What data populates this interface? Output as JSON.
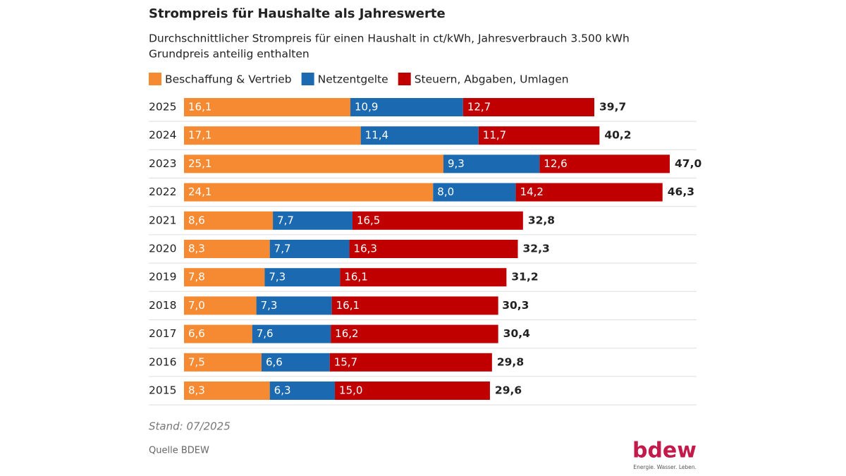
{
  "chart_data": {
    "type": "stacked-bar-horizontal",
    "title": "Strompreis für Haushalte als Jahreswerte",
    "subtitle": [
      "Durchschnittlicher Strompreis für einen Haushalt in ct/kWh, Jahresverbrauch 3.500 kWh",
      "Grundpreis anteilig enthalten"
    ],
    "categories": [
      "2025",
      "2024",
      "2023",
      "2022",
      "2021",
      "2020",
      "2019",
      "2018",
      "2017",
      "2016",
      "2015"
    ],
    "series": [
      {
        "name": "Beschaffung & Vertrieb",
        "color": "#f58a32",
        "values": [
          16.1,
          17.1,
          25.1,
          24.1,
          8.6,
          8.3,
          7.8,
          7.0,
          6.6,
          7.5,
          8.3
        ],
        "value_labels": [
          "16,1",
          "17,1",
          "25,1",
          "24,1",
          "8,6",
          "8,3",
          "7,8",
          "7,0",
          "6,6",
          "7,5",
          "8,3"
        ]
      },
      {
        "name": "Netzentgelte",
        "color": "#1b69b0",
        "values": [
          10.9,
          11.4,
          9.3,
          8.0,
          7.7,
          7.7,
          7.3,
          7.3,
          7.6,
          6.6,
          6.3
        ],
        "value_labels": [
          "10,9",
          "11,4",
          "9,3",
          "8,0",
          "7,7",
          "7,7",
          "7,3",
          "7,3",
          "7,6",
          "6,6",
          "6,3"
        ]
      },
      {
        "name": "Steuern, Abgaben, Umlagen",
        "color": "#c00000",
        "values": [
          12.7,
          11.7,
          12.6,
          14.2,
          16.5,
          16.3,
          16.1,
          16.1,
          16.2,
          15.7,
          15.0
        ],
        "value_labels": [
          "12,7",
          "11,7",
          "12,6",
          "14,2",
          "16,5",
          "16,3",
          "16,1",
          "16,1",
          "16,2",
          "15,7",
          "15,0"
        ]
      }
    ],
    "totals": [
      39.7,
      40.2,
      47.0,
      46.3,
      32.8,
      32.3,
      31.2,
      30.3,
      30.4,
      29.8,
      29.6
    ],
    "total_labels": [
      "39,7",
      "40,2",
      "47,0",
      "46,3",
      "32,8",
      "32,3",
      "31,2",
      "30,3",
      "30,4",
      "29,8",
      "29,6"
    ],
    "note": "Stand: 07/2025",
    "source": "Quelle BDEW",
    "logo": {
      "name": "bdew",
      "tagline": "Energie. Wasser. Leben."
    }
  }
}
